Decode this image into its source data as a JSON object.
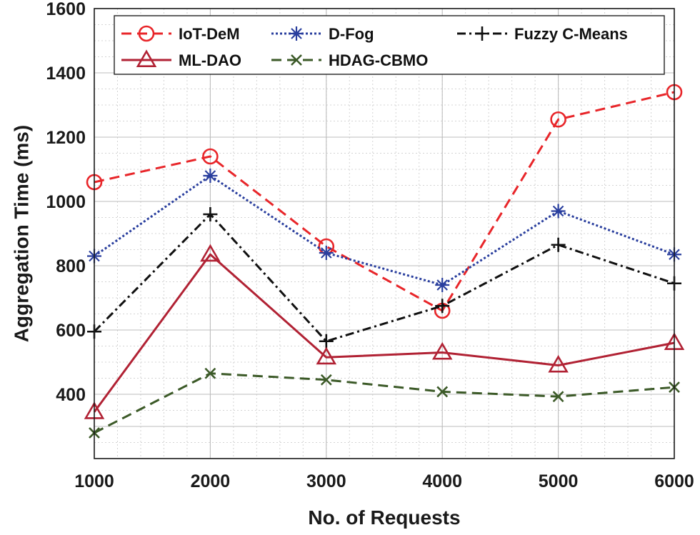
{
  "chart_data": {
    "type": "line",
    "title": "",
    "xlabel": "No. of Requests",
    "ylabel": "Aggregation Time (ms)",
    "x": [
      1000,
      2000,
      3000,
      4000,
      5000,
      6000
    ],
    "xlim": [
      1000,
      6000
    ],
    "ylim": [
      200,
      1600
    ],
    "xticks": [
      1000,
      2000,
      3000,
      4000,
      5000,
      6000
    ],
    "yticks": [
      400,
      600,
      800,
      1000,
      1200,
      1400,
      1600
    ],
    "grid": true,
    "legend_position": "top",
    "series": [
      {
        "name": "IoT-DeM",
        "values": [
          1060,
          1140,
          860,
          660,
          1255,
          1340
        ],
        "color": "#e8262a",
        "line": "dashed",
        "marker": "circle"
      },
      {
        "name": "D-Fog",
        "values": [
          830,
          1080,
          840,
          740,
          970,
          835
        ],
        "color": "#2a3f9e",
        "line": "dotted",
        "marker": "asterisk"
      },
      {
        "name": "Fuzzy C-Means",
        "values": [
          595,
          960,
          565,
          675,
          865,
          745
        ],
        "color": "#111111",
        "line": "dashdot",
        "marker": "plus"
      },
      {
        "name": "ML-DAO",
        "values": [
          345,
          835,
          515,
          530,
          490,
          560
        ],
        "color": "#b12234",
        "line": "solid",
        "marker": "triangle"
      },
      {
        "name": "HDAG-CBMO",
        "values": [
          280,
          465,
          445,
          408,
          393,
          422
        ],
        "color": "#3c5a28",
        "line": "dashed",
        "marker": "x"
      }
    ]
  }
}
